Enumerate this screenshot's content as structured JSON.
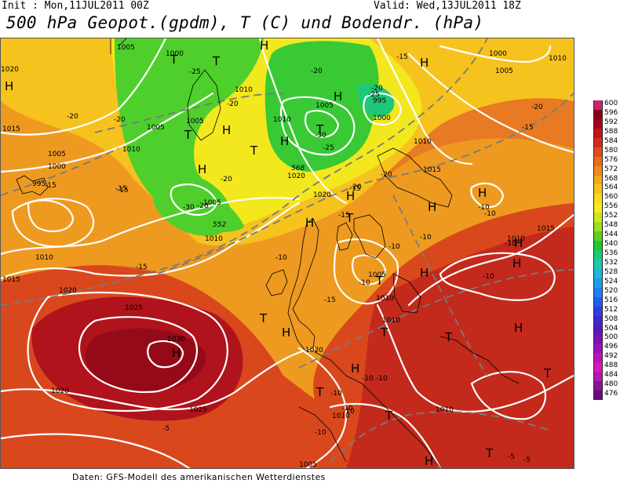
{
  "header": {
    "init": "Init : Mon,11JUL2011 00Z",
    "valid": "Valid: Wed,13JUL2011 18Z",
    "title": "500 hPa Geopot.(gpdm), T (C) und Bodendr. (hPa)"
  },
  "footer": {
    "source": "Daten: GFS-Modell des amerikanischen Wetterdienstes"
  },
  "legend": {
    "levels": [
      "600",
      "596",
      "592",
      "588",
      "584",
      "580",
      "576",
      "572",
      "568",
      "564",
      "560",
      "556",
      "552",
      "548",
      "544",
      "540",
      "536",
      "532",
      "528",
      "524",
      "520",
      "516",
      "512",
      "508",
      "504",
      "500",
      "496",
      "492",
      "488",
      "484",
      "480",
      "476"
    ],
    "colors": [
      "#c8286e",
      "#8a0018",
      "#a8001a",
      "#c0141e",
      "#d42a1e",
      "#e24a1e",
      "#ea6a1e",
      "#f0881e",
      "#f5a51e",
      "#f8c21e",
      "#f8dd1e",
      "#f2ee1e",
      "#cfe81e",
      "#9fdd1e",
      "#5fcf1e",
      "#20c830",
      "#1ec878",
      "#1ec8b4",
      "#1eb8d8",
      "#1e9ee8",
      "#1e80f0",
      "#1e60f0",
      "#2e40e0",
      "#4028d0",
      "#5a18c0",
      "#7a10b8",
      "#9a10b8",
      "#c010c0",
      "#d818b8",
      "#b018b0",
      "#8a1098",
      "#6a0880"
    ]
  },
  "map": {
    "pressure_labels": [
      "1005",
      "1000",
      "1000",
      "1010",
      "1005",
      "1010",
      "1005",
      "995",
      "1005",
      "1010",
      "1005",
      "1010",
      "1020",
      "1000",
      "1005",
      "1010",
      "1015",
      "1020",
      "1015",
      "1020",
      "1000",
      "1005",
      "995",
      "1010",
      "1015",
      "1010",
      "1015",
      "1005",
      "1010",
      "1010",
      "1025",
      "1030",
      "1020",
      "1020",
      "1025",
      "1020",
      "1010",
      "1010",
      "1010",
      "1005"
    ],
    "temp_labels": [
      "-25",
      "-20",
      "-20",
      "-30",
      "-25",
      "-25",
      "-20",
      "-15",
      "-20",
      "-20",
      "-15",
      "-20",
      "-15",
      "-10",
      "-10",
      "-10",
      "-15",
      "-10",
      "-10",
      "-10",
      "-10",
      "-10",
      "-5",
      "-5",
      "-5",
      "-10",
      "-15",
      "-20",
      "-20",
      "-15",
      "-20",
      "-30",
      "-15",
      "-15",
      "-10",
      "-10",
      "-15",
      "-20",
      "-10",
      "-10",
      "-10"
    ],
    "geopot_labels": [
      "568",
      "552"
    ],
    "high_symbol": "H",
    "low_symbol": "T"
  }
}
